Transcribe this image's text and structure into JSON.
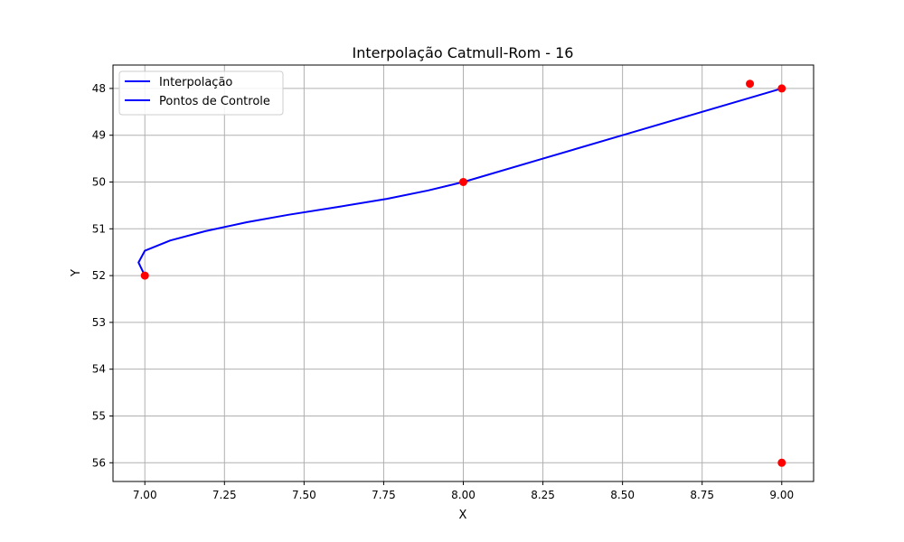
{
  "chart_data": {
    "type": "line",
    "title": "Interpolação Catmull-Rom - 16",
    "xlabel": "X",
    "ylabel": "Y",
    "xlim": [
      6.9,
      9.1
    ],
    "ylim": [
      56.4,
      47.5
    ],
    "y_inverted": true,
    "grid": true,
    "legend_position": "upper left",
    "x_ticks": [
      7.0,
      7.25,
      7.5,
      7.75,
      8.0,
      8.25,
      8.5,
      8.75,
      9.0
    ],
    "x_tick_labels": [
      "7.00",
      "7.25",
      "7.50",
      "7.75",
      "8.00",
      "8.25",
      "8.50",
      "8.75",
      "9.00"
    ],
    "y_ticks": [
      48,
      49,
      50,
      51,
      52,
      53,
      54,
      55,
      56
    ],
    "y_tick_labels": [
      "48",
      "49",
      "50",
      "51",
      "52",
      "53",
      "54",
      "55",
      "56"
    ],
    "legend": [
      {
        "label": "Interpolação",
        "color": "#0000ff"
      },
      {
        "label": "Pontos de Controle",
        "color": "#0000ff"
      }
    ],
    "series": [
      {
        "name": "Interpolação",
        "color": "#0000ff",
        "x": [
          7.0,
          6.98,
          7.0,
          7.08,
          7.19,
          7.32,
          7.45,
          7.61,
          7.76,
          7.89,
          8.0,
          8.25,
          8.5,
          8.75,
          9.0
        ],
        "y": [
          52.0,
          51.72,
          51.47,
          51.25,
          51.05,
          50.86,
          50.7,
          50.53,
          50.36,
          50.18,
          50.0,
          49.5,
          49.0,
          48.5,
          48.0
        ]
      },
      {
        "name": "Pontos de Controle",
        "color": "#ff0000",
        "x": [
          8.9,
          9.0,
          8.0,
          7.0,
          9.0
        ],
        "y": [
          47.9,
          48.0,
          50.0,
          52.0,
          56.0
        ]
      }
    ]
  }
}
